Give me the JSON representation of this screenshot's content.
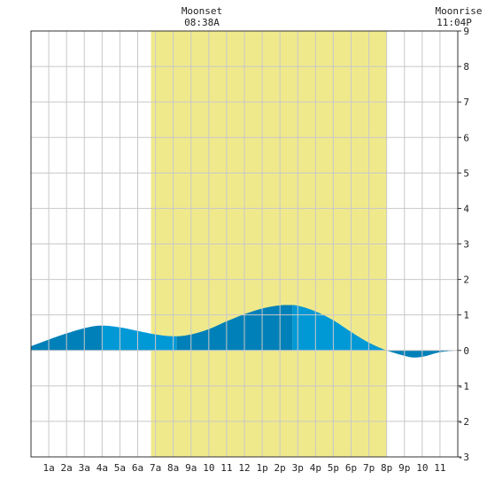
{
  "header": {
    "moonset": {
      "label": "Moonset",
      "time": "08:38A"
    },
    "moonrise": {
      "label": "Moonrise",
      "time": "11:04P"
    }
  },
  "colors": {
    "daylight": "#f0e98c",
    "tide_dark": "#0080b8",
    "tide_light": "#0099d6",
    "grid": "#c8c8c8",
    "axis": "#333333"
  },
  "chart_data": {
    "type": "area",
    "title": "",
    "xlabel": "",
    "ylabel": "",
    "xlim": [
      0,
      24
    ],
    "ylim": [
      -3,
      9
    ],
    "grid": true,
    "x_tick_labels": [
      "1a",
      "2a",
      "3a",
      "4a",
      "5a",
      "6a",
      "7a",
      "8a",
      "9a",
      "10",
      "11",
      "12",
      "1p",
      "2p",
      "3p",
      "4p",
      "5p",
      "6p",
      "7p",
      "8p",
      "9p",
      "10",
      "11"
    ],
    "x_tick_positions": [
      1,
      2,
      3,
      4,
      5,
      6,
      7,
      8,
      9,
      10,
      11,
      12,
      13,
      14,
      15,
      16,
      17,
      18,
      19,
      20,
      21,
      22,
      23
    ],
    "y_tick_labels": [
      "-3",
      "-2",
      "-1",
      "0",
      "1",
      "2",
      "3",
      "4",
      "5",
      "6",
      "7",
      "8",
      "9"
    ],
    "y_tick_values": [
      -3,
      -2,
      -1,
      0,
      1,
      2,
      3,
      4,
      5,
      6,
      7,
      8,
      9
    ],
    "daylight_start": 6.75,
    "daylight_end": 20.0,
    "moonset_time": 8.63,
    "moonrise_time": 23.07,
    "tide_alternate_bands_at": [
      0,
      4,
      8.2,
      14.7,
      20,
      24
    ],
    "series": [
      {
        "x": [
          0,
          2,
          3.5,
          4,
          5,
          6,
          7,
          8,
          8.2,
          9,
          10,
          11,
          12,
          13,
          14,
          14.7,
          15,
          16,
          17,
          18,
          19,
          20,
          21,
          21.5,
          22,
          23,
          24
        ],
        "y": [
          0.12,
          0.48,
          0.68,
          0.7,
          0.65,
          0.55,
          0.45,
          0.4,
          0.4,
          0.45,
          0.6,
          0.82,
          1.02,
          1.18,
          1.27,
          1.28,
          1.26,
          1.1,
          0.85,
          0.52,
          0.22,
          0.0,
          -0.15,
          -0.2,
          -0.18,
          -0.05,
          0.0
        ]
      }
    ]
  }
}
